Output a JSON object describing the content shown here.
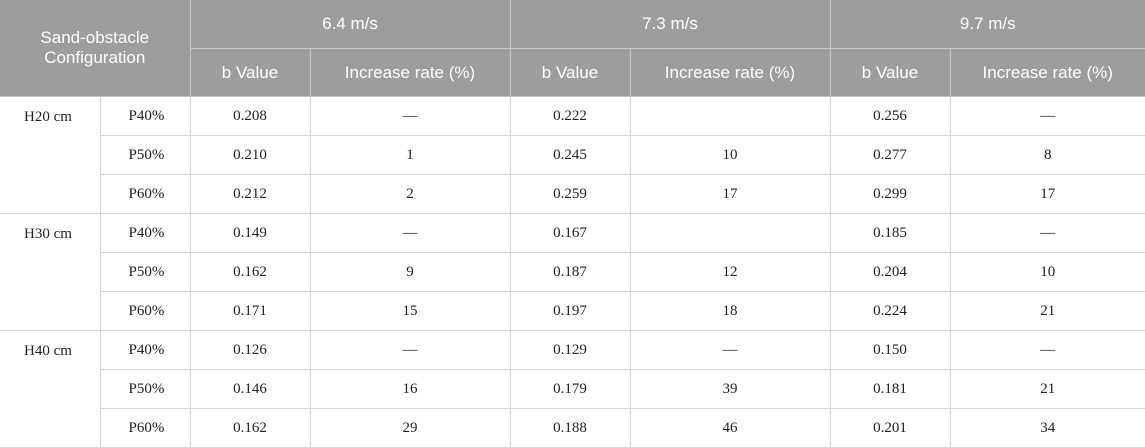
{
  "header": {
    "config": "Sand-obstacle Configuration",
    "speeds": [
      "6.4 m/s",
      "7.3 m/s",
      "9.7 m/s"
    ],
    "sub": {
      "b_value": "b Value",
      "increase_rate": "Increase rate (%)"
    }
  },
  "groups": [
    {
      "height": "H20 cm",
      "rows": [
        {
          "p": "P40%",
          "cells": [
            "0.208",
            "—",
            "0.222",
            "",
            "0.256",
            "—"
          ]
        },
        {
          "p": "P50%",
          "cells": [
            "0.210",
            "1",
            "0.245",
            "10",
            "0.277",
            "8"
          ]
        },
        {
          "p": "P60%",
          "cells": [
            "0.212",
            "2",
            "0.259",
            "17",
            "0.299",
            "17"
          ]
        }
      ]
    },
    {
      "height": "H30 cm",
      "rows": [
        {
          "p": "P40%",
          "cells": [
            "0.149",
            "—",
            "0.167",
            "",
            "0.185",
            "—"
          ]
        },
        {
          "p": "P50%",
          "cells": [
            "0.162",
            "9",
            "0.187",
            "12",
            "0.204",
            "10"
          ]
        },
        {
          "p": "P60%",
          "cells": [
            "0.171",
            "15",
            "0.197",
            "18",
            "0.224",
            "21"
          ]
        }
      ]
    },
    {
      "height": "H40 cm",
      "rows": [
        {
          "p": "P40%",
          "cells": [
            "0.126",
            "—",
            "0.129",
            "—",
            "0.150",
            "—"
          ]
        },
        {
          "p": "P50%",
          "cells": [
            "0.146",
            "16",
            "0.179",
            "39",
            "0.181",
            "21"
          ]
        },
        {
          "p": "P60%",
          "cells": [
            "0.162",
            "29",
            "0.188",
            "46",
            "0.201",
            "34"
          ]
        }
      ]
    }
  ]
}
